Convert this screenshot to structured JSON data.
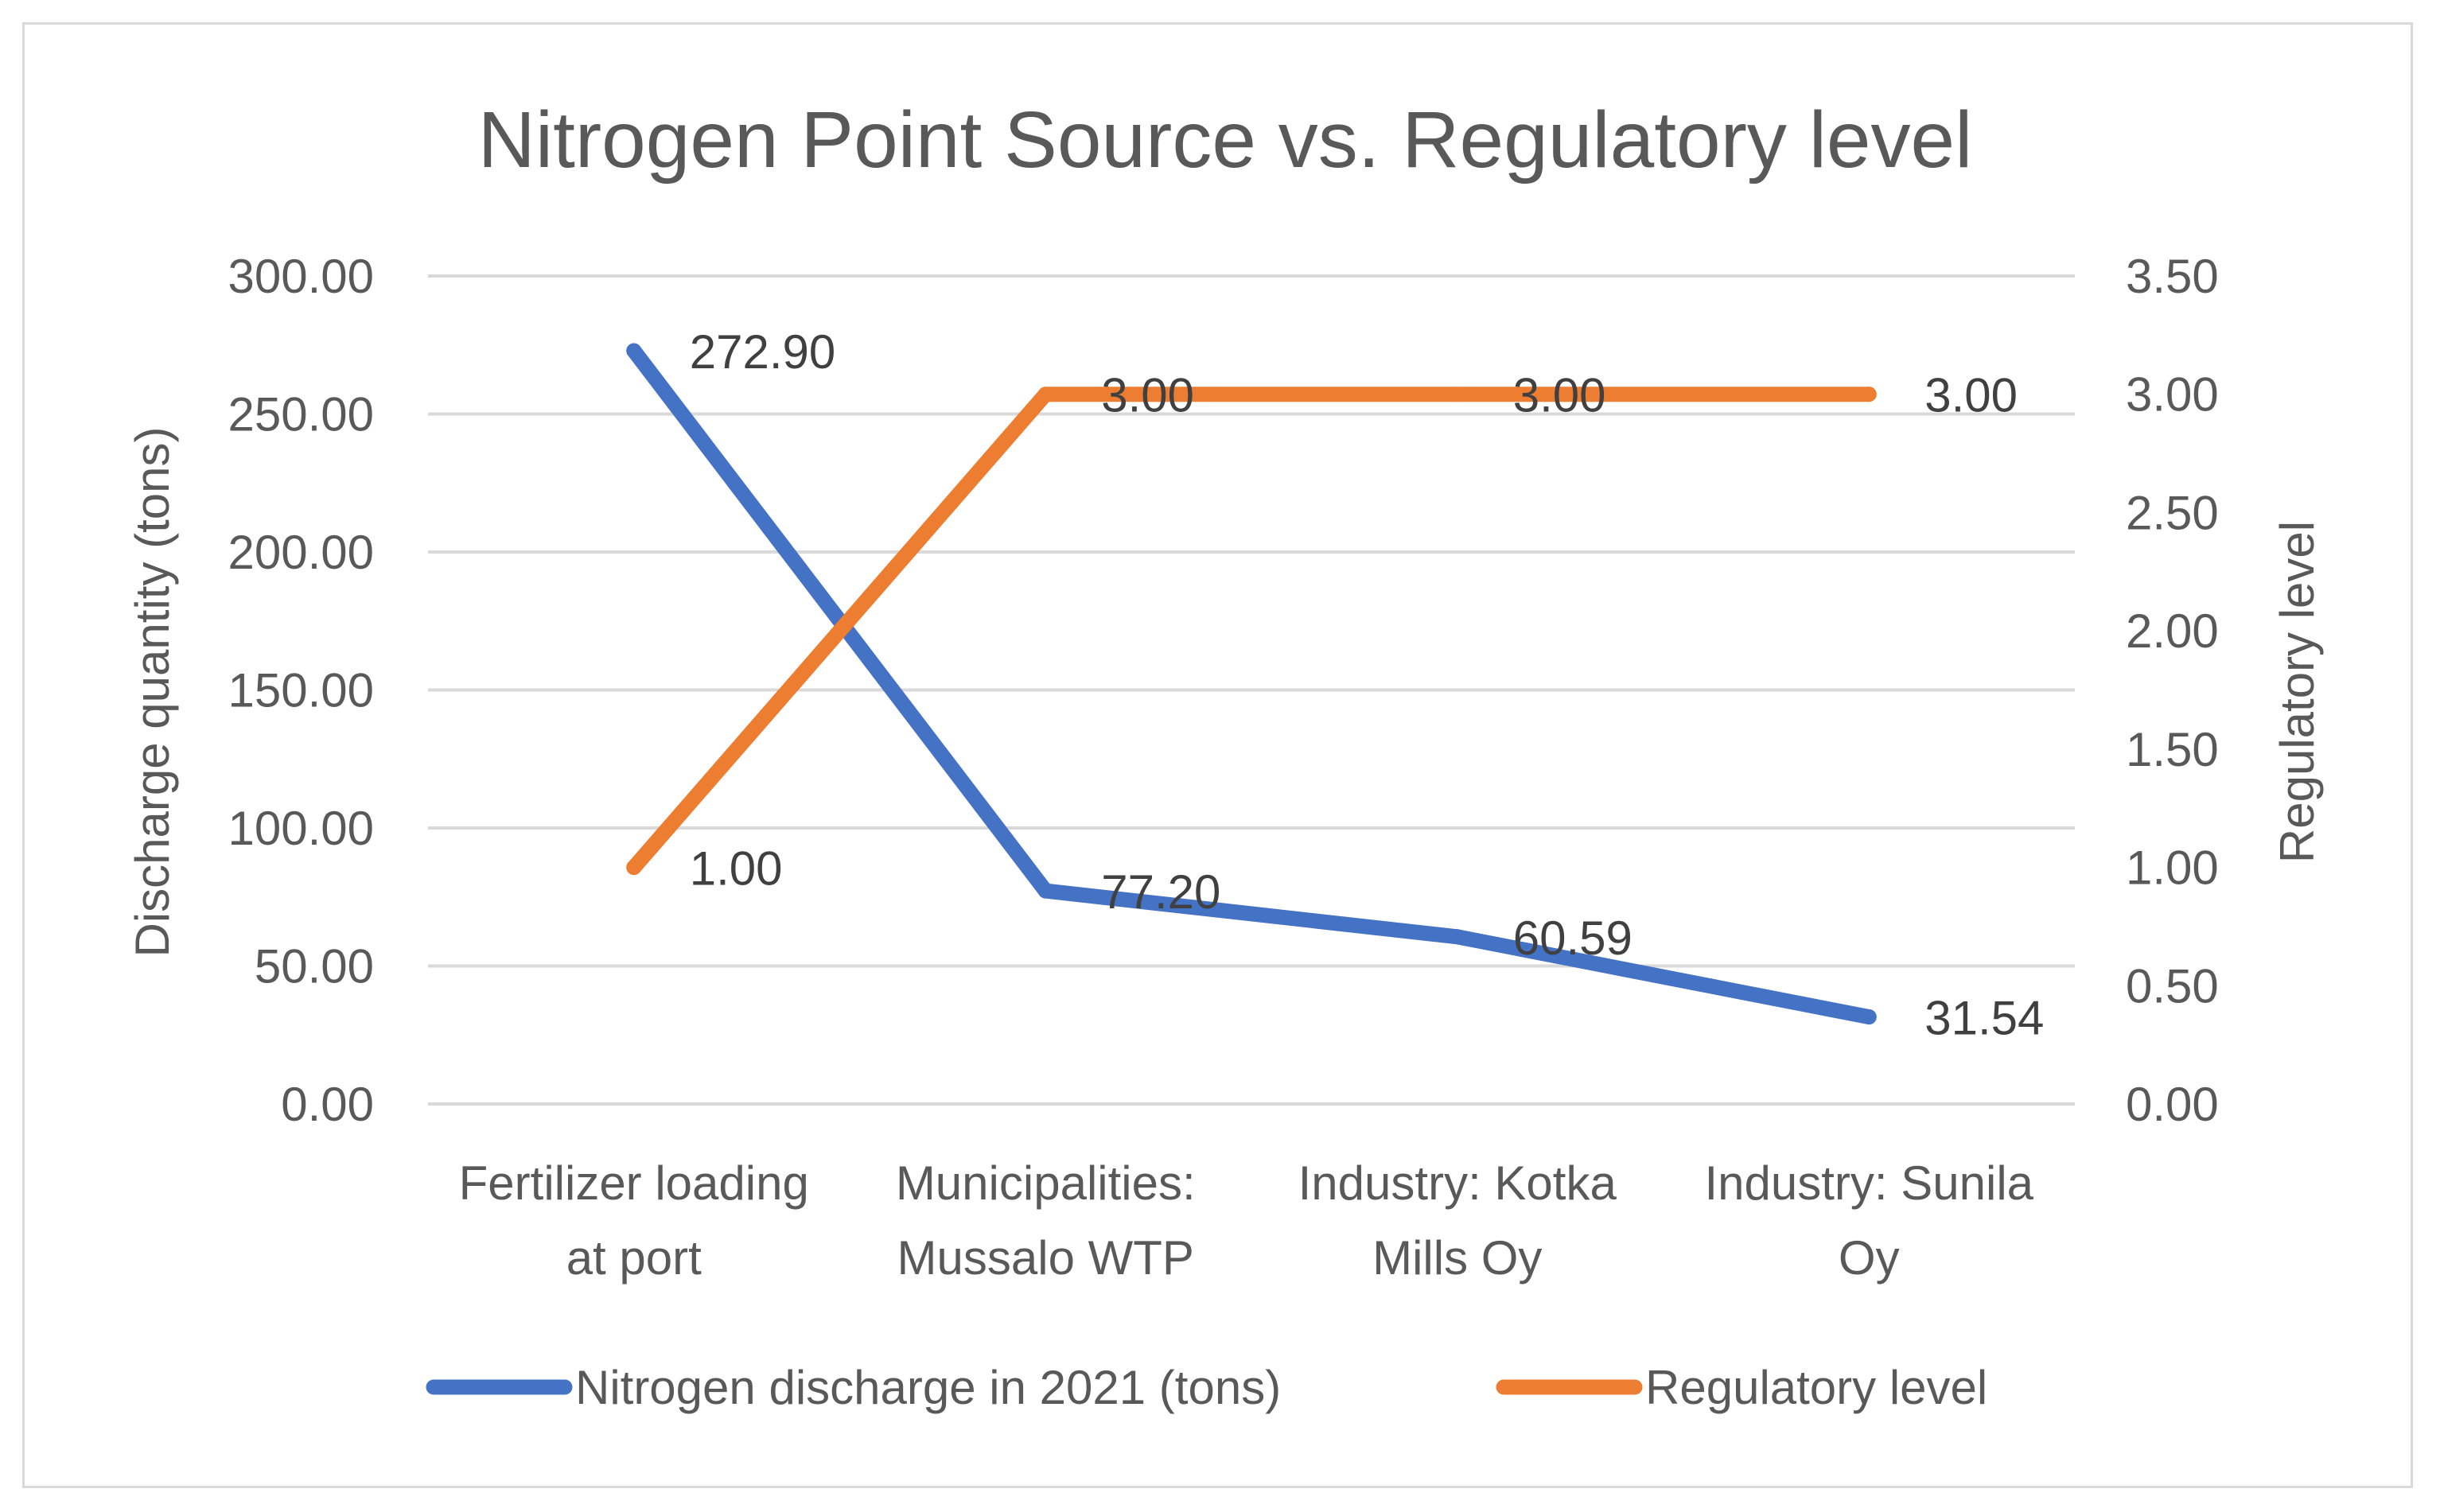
{
  "chart_data": {
    "type": "line",
    "title": "Nitrogen Point Source vs. Regulatory level",
    "categories": [
      [
        "Fertilizer loading",
        "at port"
      ],
      [
        "Municipalities:",
        "Mussalo WTP"
      ],
      [
        "Industry: Kotka",
        "Mills Oy"
      ],
      [
        "Industry: Sunila",
        "Oy"
      ]
    ],
    "y_left": {
      "label": "Discharge quantity (tons)",
      "ylim": [
        0,
        300
      ],
      "ticks": [
        "0.00",
        "50.00",
        "100.00",
        "150.00",
        "200.00",
        "250.00",
        "300.00"
      ]
    },
    "y_right": {
      "label": "Regulatory level",
      "ylim": [
        0,
        3.5
      ],
      "ticks": [
        "0.00",
        "0.50",
        "1.00",
        "1.50",
        "2.00",
        "2.50",
        "3.00",
        "3.50"
      ]
    },
    "series": [
      {
        "name": "Nitrogen discharge in 2021 (tons)",
        "axis": "left",
        "color": "#4472c4",
        "values": [
          272.9,
          77.2,
          60.59,
          31.54
        ],
        "labels": [
          "272.90",
          "77.20",
          "60.59",
          "31.54"
        ]
      },
      {
        "name": "Regulatory level",
        "axis": "right",
        "color": "#ed7d31",
        "values": [
          1.0,
          3.0,
          3.0,
          3.0
        ],
        "labels": [
          "1.00",
          "3.00",
          "3.00",
          "3.00"
        ]
      }
    ],
    "grid": true,
    "legend": "bottom"
  }
}
